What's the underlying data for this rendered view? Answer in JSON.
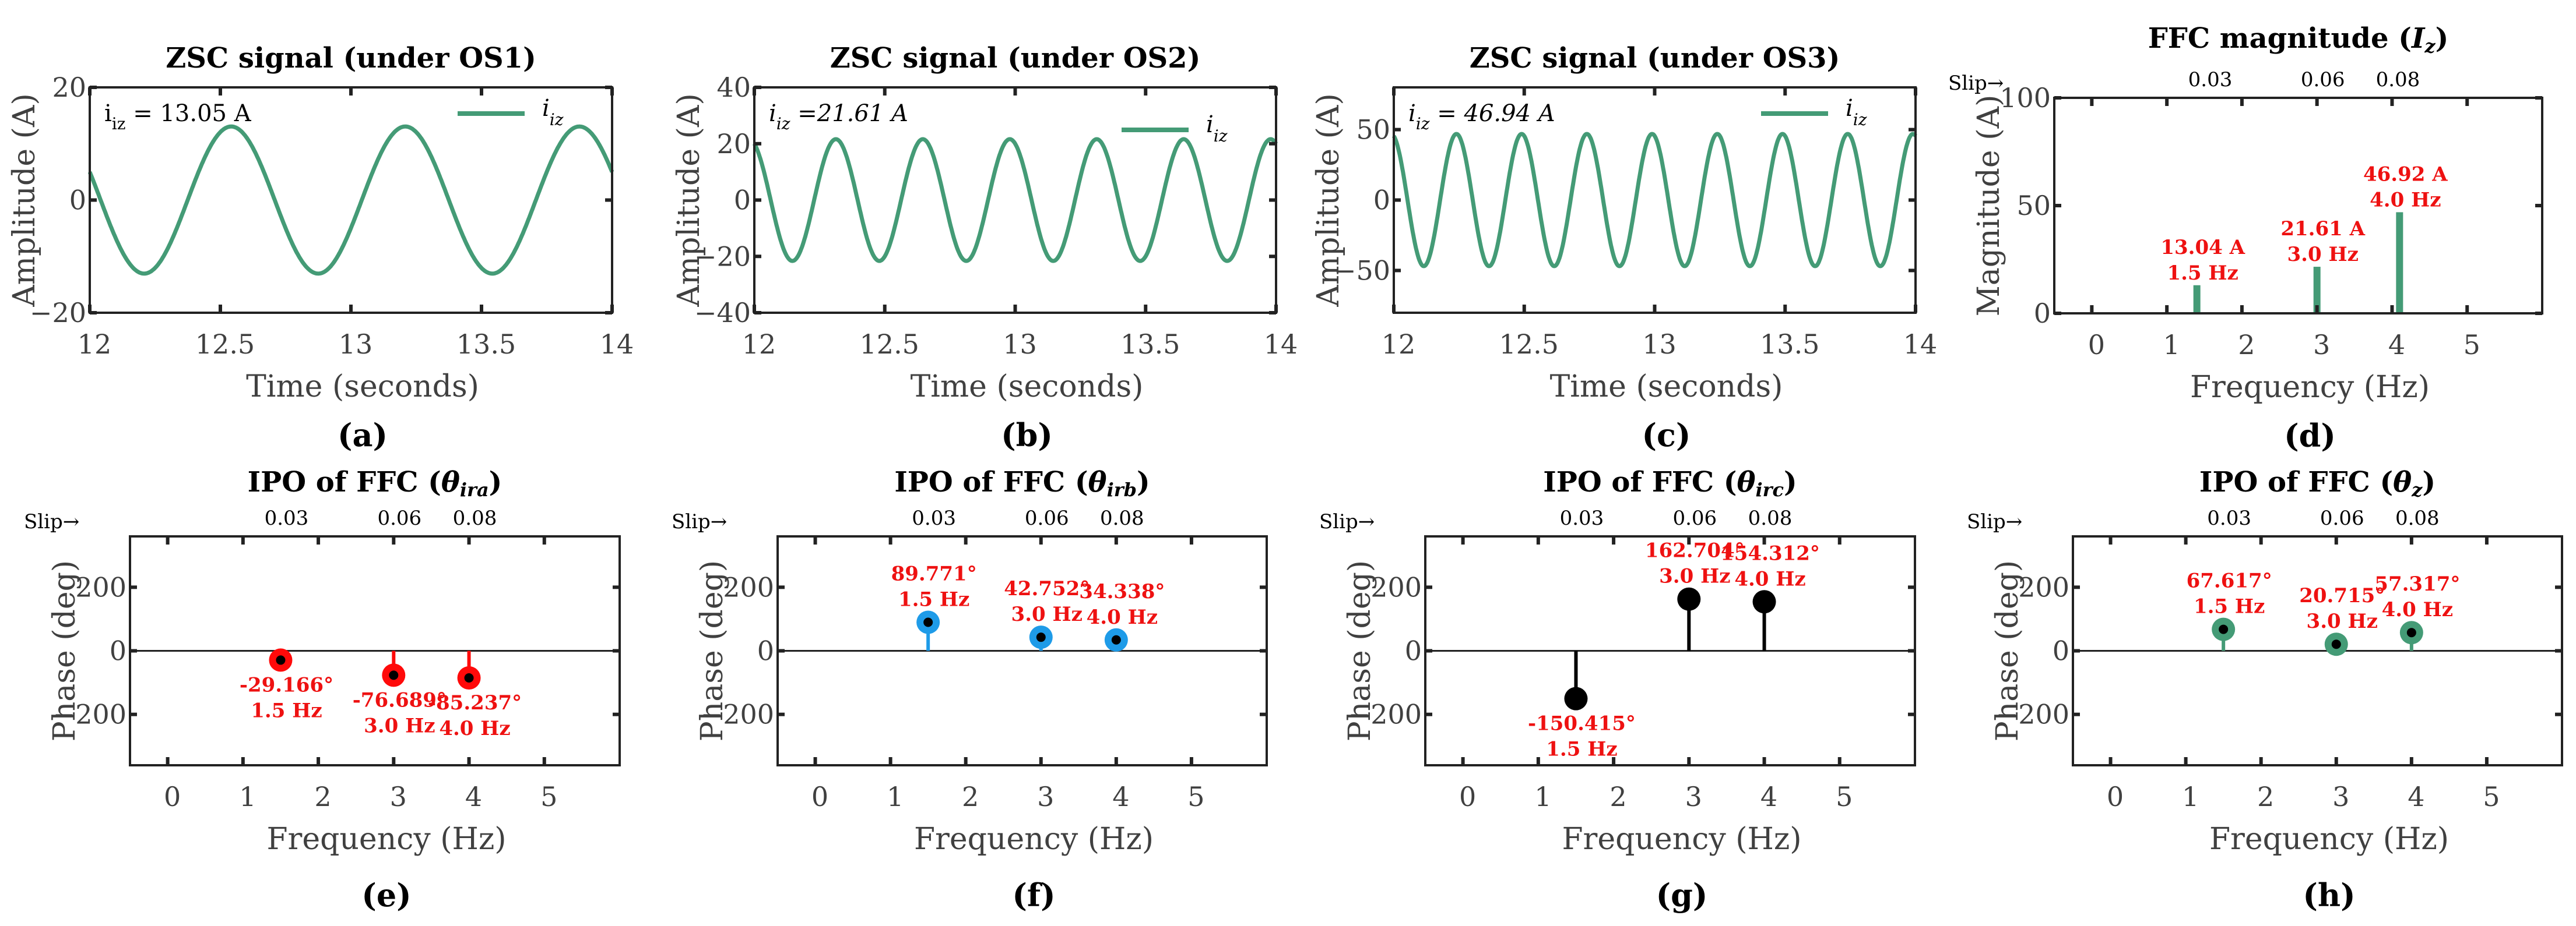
{
  "colors": {
    "line": "#449b76",
    "bar": "#449b76",
    "axis": "#222222",
    "label_red": "#ee1111",
    "marker_e": "#ff0a0a",
    "marker_f": "#1e9be8",
    "marker_g": "#000000",
    "marker_h": "#449b76",
    "marker_center": "#000000"
  },
  "chart_data": [
    {
      "id": "a",
      "type": "line",
      "panel_label": "(a)",
      "title": [
        "ZSC signal (under OS1)"
      ],
      "xlabel": "Time (seconds)",
      "ylabel": "Amplitude (A)",
      "xlim": [
        12,
        14
      ],
      "xticks": [
        12,
        12.5,
        13,
        13.5,
        14
      ],
      "xtick_labels": [
        "12",
        "12.5",
        "13",
        "13.5",
        "14"
      ],
      "ylim": [
        -20,
        20
      ],
      "yticks": [
        -20,
        0,
        20
      ],
      "ytick_labels": [
        "−20",
        "0",
        "20"
      ],
      "annotation": {
        "symbol": "i",
        "subscript": "iz",
        "text": " = 13.05 A",
        "italic": false
      },
      "legend": {
        "symbol": "i",
        "subscript": "iz",
        "position": "top-right"
      },
      "series": [
        {
          "name": "i_iz",
          "amplitude": 13.05,
          "frequency_hz": 1.5,
          "phase_rad": 2.75
        }
      ]
    },
    {
      "id": "b",
      "type": "line",
      "panel_label": "(b)",
      "title": [
        "ZSC signal (under OS2)"
      ],
      "xlabel": "Time (seconds)",
      "ylabel": "Amplitude (A)",
      "xlim": [
        12,
        14
      ],
      "xticks": [
        12,
        12.5,
        13,
        13.5,
        14
      ],
      "xtick_labels": [
        "12",
        "12.5",
        "13",
        "13.5",
        "14"
      ],
      "ylim": [
        -40,
        40
      ],
      "yticks": [
        -40,
        -20,
        0,
        20,
        40
      ],
      "ytick_labels": [
        "−40",
        "−20",
        "0",
        "20",
        "40"
      ],
      "annotation": {
        "symbol": "i",
        "subscript": "iz",
        "text": " =21.61 A",
        "italic": true
      },
      "legend": {
        "symbol": "i",
        "subscript": "iz",
        "position": "top-right"
      },
      "series": [
        {
          "name": "i_iz",
          "amplitude": 21.61,
          "frequency_hz": 3.0,
          "phase_rad": 1.96
        }
      ]
    },
    {
      "id": "c",
      "type": "line",
      "panel_label": "(c)",
      "title": [
        "ZSC signal (under OS3)"
      ],
      "xlabel": "Time (seconds)",
      "ylabel": "Amplitude (A)",
      "xlim": [
        12,
        14
      ],
      "xticks": [
        12,
        12.5,
        13,
        13.5,
        14
      ],
      "xtick_labels": [
        "12",
        "12.5",
        "13",
        "13.5",
        "14"
      ],
      "ylim": [
        -80,
        80
      ],
      "yticks": [
        -50,
        0,
        50
      ],
      "ytick_labels": [
        "−50",
        "0",
        "50"
      ],
      "annotation": {
        "symbol": "i",
        "subscript": "iz",
        "text": " = 46.94 A",
        "italic": true
      },
      "legend": {
        "symbol": "i",
        "subscript": "iz",
        "position": "top-right"
      },
      "series": [
        {
          "name": "i_iz",
          "amplitude": 46.94,
          "frequency_hz": 4.0,
          "phase_rad": 1.82
        }
      ]
    },
    {
      "id": "d",
      "type": "bar",
      "panel_label": "(d)",
      "title": [
        "FFC magnitude (",
        "I",
        "z",
        ")"
      ],
      "xlabel": "Frequency (Hz)",
      "ylabel": "Magnitude (A)",
      "xlim": [
        -0.5,
        6
      ],
      "xticks": [
        0,
        1,
        2,
        3,
        4,
        5
      ],
      "xtick_labels": [
        "0",
        "1",
        "2",
        "3",
        "4",
        "5"
      ],
      "ylim": [
        0,
        100
      ],
      "yticks": [
        0,
        50,
        100
      ],
      "ytick_labels": [
        "0",
        "50",
        "100"
      ],
      "slip_label": "Slip→",
      "slip_ticks": [
        {
          "x": 1.5,
          "label": "0.03"
        },
        {
          "x": 3.0,
          "label": "0.06"
        },
        {
          "x": 4.0,
          "label": "0.08"
        }
      ],
      "points": [
        {
          "x": 1.4,
          "value": 13.04,
          "value_label": "13.04 A",
          "freq_label": "1.5 Hz",
          "label_pos": "above"
        },
        {
          "x": 3.0,
          "value": 21.61,
          "value_label": "21.61 A",
          "freq_label": "3.0 Hz",
          "label_pos": "above"
        },
        {
          "x": 4.1,
          "value": 46.92,
          "value_label": "46.92 A",
          "freq_label": "4.0 Hz",
          "label_pos": "above"
        }
      ]
    },
    {
      "id": "e",
      "type": "stem",
      "panel_label": "(e)",
      "marker_color_key": "marker_e",
      "title": [
        "IPO of FFC (",
        "θ",
        "ira",
        ")"
      ],
      "xlabel": "Frequency (Hz)",
      "ylabel": "Phase (deg)",
      "xlim": [
        -0.5,
        6
      ],
      "xticks": [
        0,
        1,
        2,
        3,
        4,
        5
      ],
      "xtick_labels": [
        "0",
        "1",
        "2",
        "3",
        "4",
        "5"
      ],
      "ylim": [
        -360,
        360
      ],
      "yticks": [
        -200,
        0,
        200
      ],
      "ytick_labels": [
        "−200",
        "0",
        "200"
      ],
      "slip_label": "Slip→",
      "slip_ticks": [
        {
          "x": 1.5,
          "label": "0.03"
        },
        {
          "x": 3.0,
          "label": "0.06"
        },
        {
          "x": 4.0,
          "label": "0.08"
        }
      ],
      "points": [
        {
          "x": 1.5,
          "value": -29.166,
          "value_label": "-29.166°",
          "freq_label": "1.5 Hz",
          "label_pos": "below"
        },
        {
          "x": 3.0,
          "value": -76.689,
          "value_label": "-76.689°",
          "freq_label": "3.0 Hz",
          "label_pos": "below"
        },
        {
          "x": 4.0,
          "value": -85.237,
          "value_label": "-85.237°",
          "freq_label": "4.0 Hz",
          "label_pos": "below"
        }
      ]
    },
    {
      "id": "f",
      "type": "stem",
      "panel_label": "(f)",
      "marker_color_key": "marker_f",
      "title": [
        "IPO of FFC (",
        "θ",
        "irb",
        ")"
      ],
      "xlabel": "Frequency (Hz)",
      "ylabel": "Phase (deg)",
      "xlim": [
        -0.5,
        6
      ],
      "xticks": [
        0,
        1,
        2,
        3,
        4,
        5
      ],
      "xtick_labels": [
        "0",
        "1",
        "2",
        "3",
        "4",
        "5"
      ],
      "ylim": [
        -360,
        360
      ],
      "yticks": [
        -200,
        0,
        200
      ],
      "ytick_labels": [
        "−200",
        "0",
        "200"
      ],
      "slip_label": "Slip→",
      "slip_ticks": [
        {
          "x": 1.5,
          "label": "0.03"
        },
        {
          "x": 3.0,
          "label": "0.06"
        },
        {
          "x": 4.0,
          "label": "0.08"
        }
      ],
      "points": [
        {
          "x": 1.5,
          "value": 89.771,
          "value_label": "89.771°",
          "freq_label": "1.5 Hz",
          "label_pos": "above"
        },
        {
          "x": 3.0,
          "value": 42.752,
          "value_label": "42.752°",
          "freq_label": "3.0 Hz",
          "label_pos": "above"
        },
        {
          "x": 4.0,
          "value": 34.338,
          "value_label": "34.338°",
          "freq_label": "4.0 Hz",
          "label_pos": "above"
        }
      ]
    },
    {
      "id": "g",
      "type": "stem",
      "panel_label": "(g)",
      "marker_color_key": "marker_g",
      "title": [
        "IPO of FFC (",
        "θ",
        "irc",
        ")"
      ],
      "xlabel": "Frequency (Hz)",
      "ylabel": "Phase (deg)",
      "xlim": [
        -0.5,
        6
      ],
      "xticks": [
        0,
        1,
        2,
        3,
        4,
        5
      ],
      "xtick_labels": [
        "0",
        "1",
        "2",
        "3",
        "4",
        "5"
      ],
      "ylim": [
        -360,
        360
      ],
      "yticks": [
        -200,
        0,
        200
      ],
      "ytick_labels": [
        "−200",
        "0",
        "200"
      ],
      "slip_label": "Slip→",
      "slip_ticks": [
        {
          "x": 1.5,
          "label": "0.03"
        },
        {
          "x": 3.0,
          "label": "0.06"
        },
        {
          "x": 4.0,
          "label": "0.08"
        }
      ],
      "points": [
        {
          "x": 1.5,
          "value": -150.415,
          "value_label": "-150.415°",
          "freq_label": "1.5 Hz",
          "label_pos": "below"
        },
        {
          "x": 3.0,
          "value": 162.704,
          "value_label": "162.704°",
          "freq_label": "3.0 Hz",
          "label_pos": "above"
        },
        {
          "x": 4.0,
          "value": 154.312,
          "value_label": "154.312°",
          "freq_label": "4.0 Hz",
          "label_pos": "above"
        }
      ]
    },
    {
      "id": "h",
      "type": "stem",
      "panel_label": "(h)",
      "marker_color_key": "marker_h",
      "title": [
        "IPO of FFC (",
        "θ",
        "z",
        ")"
      ],
      "xlabel": "Frequency (Hz)",
      "ylabel": "Phase (deg)",
      "xlim": [
        -0.5,
        6
      ],
      "xticks": [
        0,
        1,
        2,
        3,
        4,
        5
      ],
      "xtick_labels": [
        "0",
        "1",
        "2",
        "3",
        "4",
        "5"
      ],
      "ylim": [
        -360,
        360
      ],
      "yticks": [
        -200,
        0,
        200
      ],
      "ytick_labels": [
        "−200",
        "0",
        "200"
      ],
      "slip_label": "Slip→",
      "slip_ticks": [
        {
          "x": 1.5,
          "label": "0.03"
        },
        {
          "x": 3.0,
          "label": "0.06"
        },
        {
          "x": 4.0,
          "label": "0.08"
        }
      ],
      "points": [
        {
          "x": 1.5,
          "value": 67.617,
          "value_label": "67.617°",
          "freq_label": "1.5 Hz",
          "label_pos": "above"
        },
        {
          "x": 3.0,
          "value": 20.715,
          "value_label": "20.715°",
          "freq_label": "3.0 Hz",
          "label_pos": "above"
        },
        {
          "x": 4.0,
          "value": 57.317,
          "value_label": "57.317°",
          "freq_label": "4.0 Hz",
          "label_pos": "above"
        }
      ]
    }
  ]
}
